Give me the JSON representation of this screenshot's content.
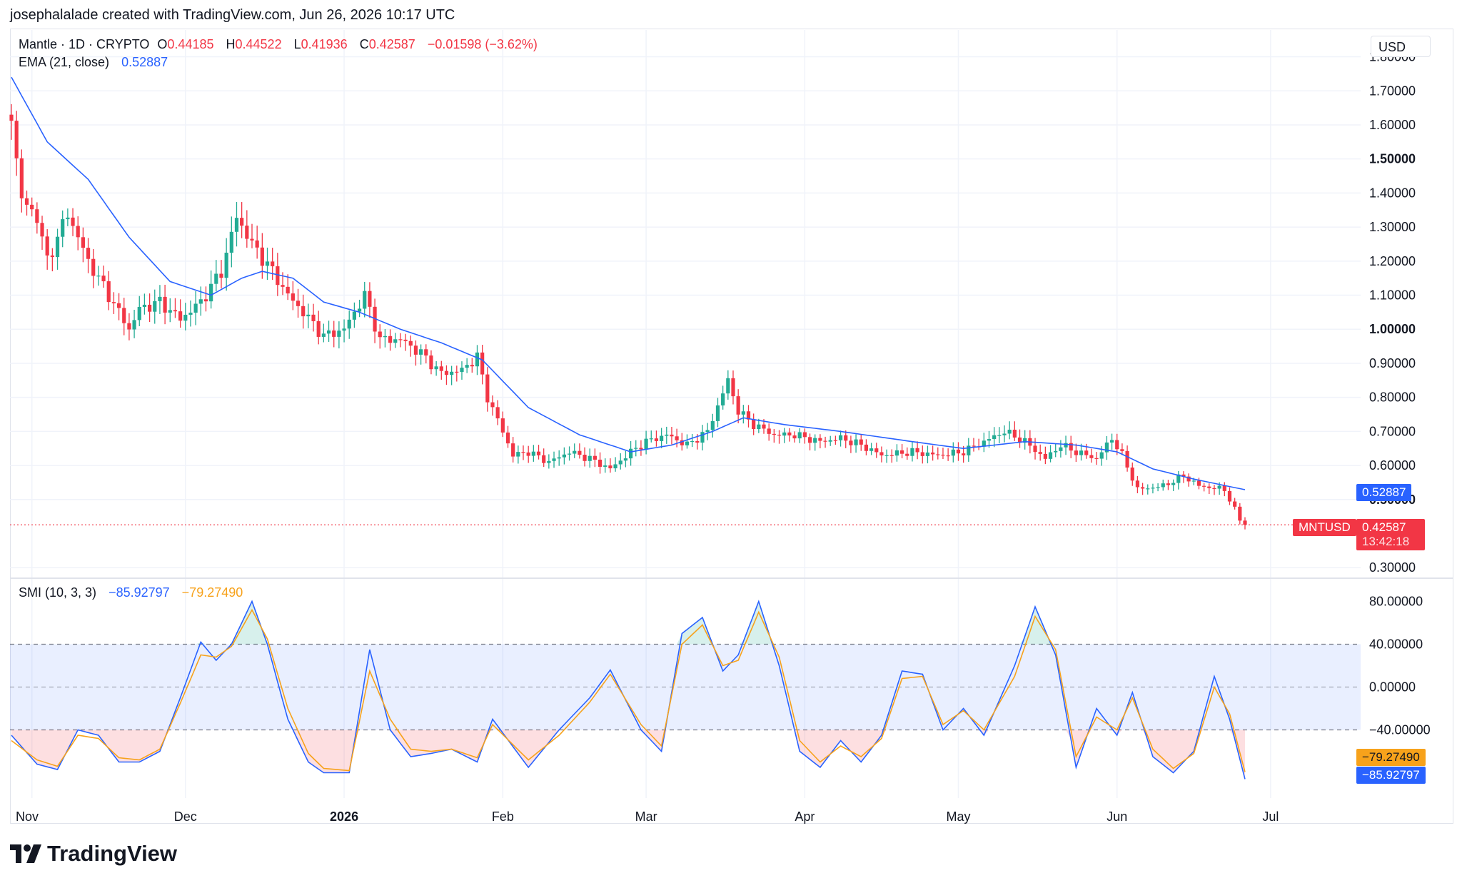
{
  "header": {
    "attribution": "josephalalade created with TradingView.com, Jun 26, 2026 10:17 UTC"
  },
  "legend": {
    "symbol": "Mantle · 1D · CRYPTO",
    "o_label": "O",
    "o_value": "0.44185",
    "h_label": "H",
    "h_value": "0.44522",
    "l_label": "L",
    "l_value": "0.41936",
    "c_label": "C",
    "c_value": "0.42587",
    "change": "−0.01598 (−3.62%)",
    "ema_label": "EMA (21, close)",
    "ema_value": "0.52887",
    "smi_label": "SMI (10, 3, 3)",
    "smi_value1": "−85.92797",
    "smi_value2": "−79.27490"
  },
  "currency": "USD",
  "badges": {
    "ema": "0.52887",
    "symbol": "MNTUSD",
    "price": "0.42587",
    "countdown": "13:42:18",
    "smi_orange": "−79.27490",
    "smi_blue": "−85.92797"
  },
  "brand": {
    "name": "TradingView"
  },
  "colors": {
    "up": "#22ab94",
    "down": "#f23645",
    "ema": "#2962ff",
    "smi": "#2962ff",
    "signal": "#f7a21b",
    "band": "#2962ff"
  },
  "chart_data": [
    {
      "type": "candlestick",
      "title": "Mantle · 1D · CRYPTO",
      "x_ticks": [
        "Nov",
        "Dec",
        "2026",
        "Feb",
        "Mar",
        "Apr",
        "May",
        "Jun",
        "Jul"
      ],
      "y_ticks": [
        "1.80000",
        "1.70000",
        "1.60000",
        "1.50000",
        "1.40000",
        "1.30000",
        "1.20000",
        "1.10000",
        "1.00000",
        "0.90000",
        "0.80000",
        "0.70000",
        "0.60000",
        "0.50000",
        "0.30000"
      ],
      "y_ticks_bold": [
        "1.50000",
        "1.00000",
        "0.50000"
      ],
      "ylim": [
        0.29,
        1.82
      ],
      "price_anchors": [
        [
          "2025-10-28",
          1.63
        ],
        [
          "2025-10-30",
          1.38
        ],
        [
          "2025-11-02",
          1.33
        ],
        [
          "2025-11-04",
          1.2
        ],
        [
          "2025-11-08",
          1.34
        ],
        [
          "2025-11-12",
          1.2
        ],
        [
          "2025-11-16",
          1.1
        ],
        [
          "2025-11-20",
          1.0
        ],
        [
          "2025-11-22",
          1.06
        ],
        [
          "2025-11-26",
          1.08
        ],
        [
          "2025-11-30",
          1.03
        ],
        [
          "2025-12-04",
          1.08
        ],
        [
          "2025-12-08",
          1.17
        ],
        [
          "2025-12-11",
          1.33
        ],
        [
          "2025-12-14",
          1.25
        ],
        [
          "2025-12-18",
          1.17
        ],
        [
          "2025-12-21",
          1.1
        ],
        [
          "2025-12-24",
          1.05
        ],
        [
          "2025-12-28",
          0.98
        ],
        [
          "2026-01-01",
          1.0
        ],
        [
          "2026-01-05",
          1.1
        ],
        [
          "2026-01-08",
          0.97
        ],
        [
          "2026-01-12",
          0.97
        ],
        [
          "2026-01-16",
          0.93
        ],
        [
          "2026-01-20",
          0.87
        ],
        [
          "2026-01-24",
          0.88
        ],
        [
          "2026-01-27",
          0.92
        ],
        [
          "2026-01-29",
          0.8
        ],
        [
          "2026-02-01",
          0.7
        ],
        [
          "2026-02-03",
          0.63
        ],
        [
          "2026-02-06",
          0.64
        ],
        [
          "2026-02-10",
          0.61
        ],
        [
          "2026-02-14",
          0.64
        ],
        [
          "2026-02-18",
          0.62
        ],
        [
          "2026-02-22",
          0.59
        ],
        [
          "2026-02-26",
          0.64
        ],
        [
          "2026-03-01",
          0.67
        ],
        [
          "2026-03-05",
          0.69
        ],
        [
          "2026-03-09",
          0.66
        ],
        [
          "2026-03-13",
          0.7
        ],
        [
          "2026-03-17",
          0.85
        ],
        [
          "2026-03-19",
          0.76
        ],
        [
          "2026-03-22",
          0.72
        ],
        [
          "2026-03-26",
          0.69
        ],
        [
          "2026-03-30",
          0.69
        ],
        [
          "2026-04-04",
          0.67
        ],
        [
          "2026-04-08",
          0.68
        ],
        [
          "2026-04-12",
          0.66
        ],
        [
          "2026-04-16",
          0.63
        ],
        [
          "2026-04-22",
          0.64
        ],
        [
          "2026-04-27",
          0.63
        ],
        [
          "2026-05-02",
          0.64
        ],
        [
          "2026-05-06",
          0.67
        ],
        [
          "2026-05-10",
          0.7
        ],
        [
          "2026-05-14",
          0.67
        ],
        [
          "2026-05-18",
          0.62
        ],
        [
          "2026-05-21",
          0.66
        ],
        [
          "2026-05-24",
          0.64
        ],
        [
          "2026-05-28",
          0.62
        ],
        [
          "2026-05-31",
          0.68
        ],
        [
          "2026-06-02",
          0.63
        ],
        [
          "2026-06-05",
          0.53
        ],
        [
          "2026-06-10",
          0.54
        ],
        [
          "2026-06-14",
          0.57
        ],
        [
          "2026-06-17",
          0.54
        ],
        [
          "2026-06-22",
          0.53
        ],
        [
          "2026-06-25",
          0.44
        ],
        [
          "2026-06-26",
          0.42587
        ]
      ],
      "ema_anchors": [
        [
          "2025-10-28",
          1.74
        ],
        [
          "2025-11-04",
          1.55
        ],
        [
          "2025-11-12",
          1.44
        ],
        [
          "2025-11-20",
          1.27
        ],
        [
          "2025-11-28",
          1.14
        ],
        [
          "2025-12-06",
          1.1
        ],
        [
          "2025-12-12",
          1.15
        ],
        [
          "2025-12-16",
          1.17
        ],
        [
          "2025-12-22",
          1.15
        ],
        [
          "2025-12-28",
          1.08
        ],
        [
          "2026-01-04",
          1.05
        ],
        [
          "2026-01-12",
          1.0
        ],
        [
          "2026-01-20",
          0.96
        ],
        [
          "2026-01-28",
          0.91
        ],
        [
          "2026-02-06",
          0.77
        ],
        [
          "2026-02-16",
          0.69
        ],
        [
          "2026-02-26",
          0.64
        ],
        [
          "2026-03-06",
          0.66
        ],
        [
          "2026-03-14",
          0.7
        ],
        [
          "2026-03-20",
          0.74
        ],
        [
          "2026-03-28",
          0.72
        ],
        [
          "2026-04-08",
          0.7
        ],
        [
          "2026-04-22",
          0.67
        ],
        [
          "2026-05-02",
          0.65
        ],
        [
          "2026-05-14",
          0.67
        ],
        [
          "2026-05-24",
          0.66
        ],
        [
          "2026-06-01",
          0.64
        ],
        [
          "2026-06-08",
          0.59
        ],
        [
          "2026-06-16",
          0.56
        ],
        [
          "2026-06-26",
          0.52887
        ]
      ],
      "last_price": 0.42587,
      "ema_last": 0.52887
    },
    {
      "type": "line",
      "title": "SMI (10, 3, 3)",
      "y_ticks": [
        "80.00000",
        "40.00000",
        "0.00000",
        "−40.00000"
      ],
      "ylim": [
        -105,
        95
      ],
      "bands": [
        40,
        0,
        -40
      ],
      "series": [
        {
          "name": "SMI",
          "anchors": [
            [
              "2025-10-28",
              -45
            ],
            [
              "2025-11-02",
              -72
            ],
            [
              "2025-11-06",
              -77
            ],
            [
              "2025-11-10",
              -40
            ],
            [
              "2025-11-14",
              -45
            ],
            [
              "2025-11-18",
              -70
            ],
            [
              "2025-11-22",
              -70
            ],
            [
              "2025-11-26",
              -60
            ],
            [
              "2025-11-30",
              -10
            ],
            [
              "2025-12-04",
              42
            ],
            [
              "2025-12-07",
              25
            ],
            [
              "2025-12-10",
              40
            ],
            [
              "2025-12-14",
              80
            ],
            [
              "2025-12-17",
              40
            ],
            [
              "2025-12-21",
              -30
            ],
            [
              "2025-12-25",
              -70
            ],
            [
              "2025-12-28",
              -80
            ],
            [
              "2026-01-02",
              -80
            ],
            [
              "2026-01-06",
              35
            ],
            [
              "2026-01-10",
              -40
            ],
            [
              "2026-01-14",
              -65
            ],
            [
              "2026-01-18",
              -62
            ],
            [
              "2026-01-22",
              -58
            ],
            [
              "2026-01-27",
              -70
            ],
            [
              "2026-01-30",
              -30
            ],
            [
              "2026-02-06",
              -75
            ],
            [
              "2026-02-12",
              -40
            ],
            [
              "2026-02-18",
              -10
            ],
            [
              "2026-02-22",
              16
            ],
            [
              "2026-02-28",
              -40
            ],
            [
              "2026-03-04",
              -60
            ],
            [
              "2026-03-08",
              50
            ],
            [
              "2026-03-12",
              65
            ],
            [
              "2026-03-16",
              15
            ],
            [
              "2026-03-19",
              30
            ],
            [
              "2026-03-23",
              80
            ],
            [
              "2026-03-27",
              20
            ],
            [
              "2026-03-31",
              -60
            ],
            [
              "2026-04-04",
              -75
            ],
            [
              "2026-04-08",
              -50
            ],
            [
              "2026-04-12",
              -70
            ],
            [
              "2026-04-16",
              -45
            ],
            [
              "2026-04-20",
              15
            ],
            [
              "2026-04-24",
              12
            ],
            [
              "2026-04-28",
              -40
            ],
            [
              "2026-05-02",
              -20
            ],
            [
              "2026-05-06",
              -45
            ],
            [
              "2026-05-12",
              20
            ],
            [
              "2026-05-16",
              75
            ],
            [
              "2026-05-20",
              30
            ],
            [
              "2026-05-24",
              -75
            ],
            [
              "2026-05-28",
              -20
            ],
            [
              "2026-06-01",
              -45
            ],
            [
              "2026-06-04",
              -5
            ],
            [
              "2026-06-08",
              -65
            ],
            [
              "2026-06-12",
              -80
            ],
            [
              "2026-06-16",
              -60
            ],
            [
              "2026-06-20",
              10
            ],
            [
              "2026-06-23",
              -30
            ],
            [
              "2026-06-26",
              -85.92797
            ]
          ]
        },
        {
          "name": "Signal",
          "anchors": [
            [
              "2025-10-28",
              -50
            ],
            [
              "2025-11-02",
              -68
            ],
            [
              "2025-11-06",
              -74
            ],
            [
              "2025-11-10",
              -45
            ],
            [
              "2025-11-14",
              -48
            ],
            [
              "2025-11-18",
              -66
            ],
            [
              "2025-11-22",
              -68
            ],
            [
              "2025-11-26",
              -58
            ],
            [
              "2025-11-30",
              -15
            ],
            [
              "2025-12-04",
              30
            ],
            [
              "2025-12-07",
              28
            ],
            [
              "2025-12-10",
              38
            ],
            [
              "2025-12-14",
              72
            ],
            [
              "2025-12-17",
              45
            ],
            [
              "2025-12-21",
              -20
            ],
            [
              "2025-12-25",
              -62
            ],
            [
              "2025-12-28",
              -76
            ],
            [
              "2026-01-02",
              -78
            ],
            [
              "2026-01-06",
              15
            ],
            [
              "2026-01-10",
              -30
            ],
            [
              "2026-01-14",
              -58
            ],
            [
              "2026-01-18",
              -60
            ],
            [
              "2026-01-22",
              -58
            ],
            [
              "2026-01-27",
              -66
            ],
            [
              "2026-01-30",
              -35
            ],
            [
              "2026-02-06",
              -68
            ],
            [
              "2026-02-12",
              -45
            ],
            [
              "2026-02-18",
              -14
            ],
            [
              "2026-02-22",
              12
            ],
            [
              "2026-02-28",
              -35
            ],
            [
              "2026-03-04",
              -55
            ],
            [
              "2026-03-08",
              40
            ],
            [
              "2026-03-12",
              58
            ],
            [
              "2026-03-16",
              20
            ],
            [
              "2026-03-19",
              25
            ],
            [
              "2026-03-23",
              70
            ],
            [
              "2026-03-27",
              28
            ],
            [
              "2026-03-31",
              -50
            ],
            [
              "2026-04-04",
              -70
            ],
            [
              "2026-04-08",
              -55
            ],
            [
              "2026-04-12",
              -65
            ],
            [
              "2026-04-16",
              -48
            ],
            [
              "2026-04-20",
              8
            ],
            [
              "2026-04-24",
              10
            ],
            [
              "2026-04-28",
              -35
            ],
            [
              "2026-05-02",
              -22
            ],
            [
              "2026-05-06",
              -40
            ],
            [
              "2026-05-12",
              10
            ],
            [
              "2026-05-16",
              66
            ],
            [
              "2026-05-20",
              35
            ],
            [
              "2026-05-24",
              -65
            ],
            [
              "2026-05-28",
              -28
            ],
            [
              "2026-06-01",
              -40
            ],
            [
              "2026-06-04",
              -10
            ],
            [
              "2026-06-08",
              -58
            ],
            [
              "2026-06-12",
              -76
            ],
            [
              "2026-06-16",
              -62
            ],
            [
              "2026-06-20",
              0
            ],
            [
              "2026-06-23",
              -25
            ],
            [
              "2026-06-26",
              -79.2749
            ]
          ]
        }
      ]
    }
  ]
}
